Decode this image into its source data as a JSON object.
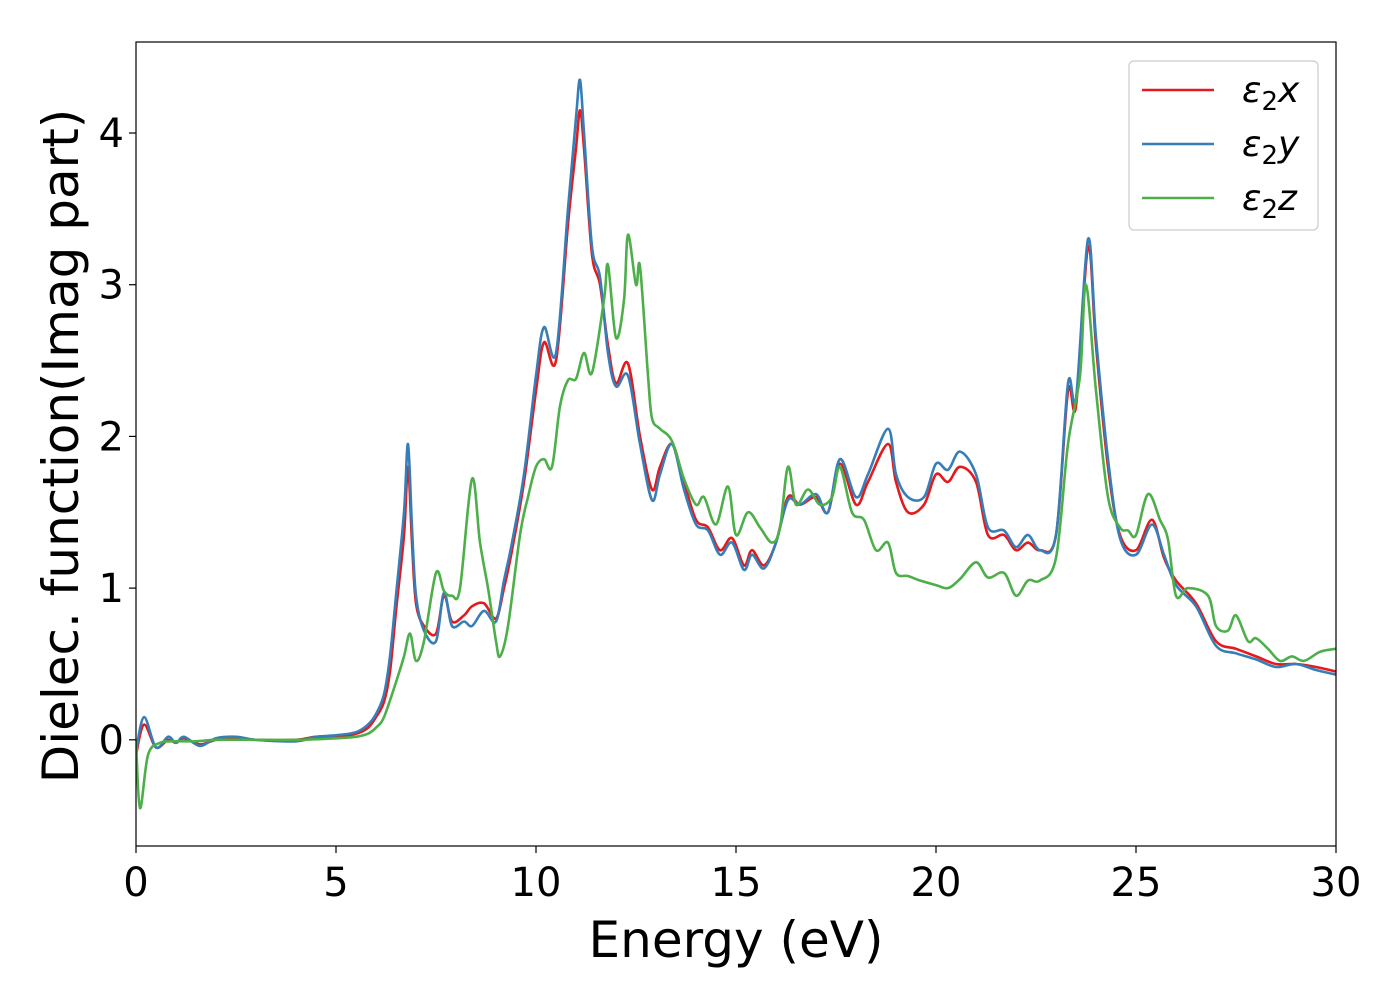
{
  "chart_data": {
    "type": "line",
    "title": "",
    "xlabel": "Energy (eV)",
    "ylabel": "Dielec. function(Imag part)",
    "xlim": [
      0,
      30
    ],
    "ylim": [
      -0.7,
      4.6
    ],
    "xticks": [
      0,
      5,
      10,
      15,
      20,
      25,
      30
    ],
    "xtick_labels": [
      "0",
      "5",
      "10",
      "15",
      "20",
      "25",
      "30"
    ],
    "yticks": [
      0,
      1,
      2,
      3,
      4
    ],
    "ytick_labels": [
      "0",
      "1",
      "2",
      "3",
      "4"
    ],
    "grid": false,
    "legend_position": "top-right",
    "series": [
      {
        "name": "ε2x",
        "legend_base": "ε",
        "legend_sub": "2",
        "legend_suffix": "x",
        "color": "#e41a1c",
        "points": [
          [
            0,
            -0.1
          ],
          [
            0.2,
            0.1
          ],
          [
            0.5,
            -0.05
          ],
          [
            0.8,
            0.0
          ],
          [
            1.0,
            -0.02
          ],
          [
            1.2,
            0.01
          ],
          [
            1.6,
            -0.03
          ],
          [
            2.0,
            0.0
          ],
          [
            2.5,
            0.01
          ],
          [
            3.0,
            0.0
          ],
          [
            4.0,
            0.0
          ],
          [
            4.5,
            0.02
          ],
          [
            5.0,
            0.02
          ],
          [
            5.5,
            0.04
          ],
          [
            5.8,
            0.08
          ],
          [
            6.0,
            0.15
          ],
          [
            6.2,
            0.25
          ],
          [
            6.35,
            0.45
          ],
          [
            6.5,
            0.85
          ],
          [
            6.7,
            1.35
          ],
          [
            6.8,
            1.8
          ],
          [
            6.9,
            1.3
          ],
          [
            7.0,
            0.9
          ],
          [
            7.2,
            0.75
          ],
          [
            7.5,
            0.7
          ],
          [
            7.7,
            0.95
          ],
          [
            7.9,
            0.78
          ],
          [
            8.2,
            0.82
          ],
          [
            8.4,
            0.88
          ],
          [
            8.7,
            0.9
          ],
          [
            9.0,
            0.8
          ],
          [
            9.2,
            1.0
          ],
          [
            9.4,
            1.25
          ],
          [
            9.7,
            1.7
          ],
          [
            10.0,
            2.3
          ],
          [
            10.2,
            2.62
          ],
          [
            10.5,
            2.5
          ],
          [
            10.8,
            3.4
          ],
          [
            11.0,
            3.9
          ],
          [
            11.1,
            4.15
          ],
          [
            11.2,
            3.9
          ],
          [
            11.4,
            3.2
          ],
          [
            11.6,
            3.0
          ],
          [
            11.8,
            2.6
          ],
          [
            12.0,
            2.35
          ],
          [
            12.3,
            2.48
          ],
          [
            12.6,
            2.0
          ],
          [
            12.9,
            1.65
          ],
          [
            13.1,
            1.8
          ],
          [
            13.4,
            1.95
          ],
          [
            13.7,
            1.7
          ],
          [
            14.0,
            1.45
          ],
          [
            14.3,
            1.4
          ],
          [
            14.6,
            1.25
          ],
          [
            14.9,
            1.33
          ],
          [
            15.2,
            1.15
          ],
          [
            15.4,
            1.25
          ],
          [
            15.7,
            1.15
          ],
          [
            16.0,
            1.3
          ],
          [
            16.3,
            1.6
          ],
          [
            16.6,
            1.55
          ],
          [
            17.0,
            1.6
          ],
          [
            17.3,
            1.5
          ],
          [
            17.6,
            1.82
          ],
          [
            18.0,
            1.55
          ],
          [
            18.3,
            1.7
          ],
          [
            18.8,
            1.95
          ],
          [
            19.0,
            1.7
          ],
          [
            19.3,
            1.5
          ],
          [
            19.7,
            1.55
          ],
          [
            20.0,
            1.75
          ],
          [
            20.3,
            1.7
          ],
          [
            20.6,
            1.8
          ],
          [
            21.0,
            1.7
          ],
          [
            21.3,
            1.35
          ],
          [
            21.7,
            1.35
          ],
          [
            22.0,
            1.25
          ],
          [
            22.3,
            1.3
          ],
          [
            22.6,
            1.25
          ],
          [
            23.0,
            1.35
          ],
          [
            23.3,
            2.3
          ],
          [
            23.5,
            2.2
          ],
          [
            23.8,
            3.25
          ],
          [
            24.0,
            2.6
          ],
          [
            24.3,
            1.8
          ],
          [
            24.6,
            1.35
          ],
          [
            25.0,
            1.25
          ],
          [
            25.4,
            1.45
          ],
          [
            25.7,
            1.2
          ],
          [
            26.0,
            1.05
          ],
          [
            26.5,
            0.9
          ],
          [
            27.0,
            0.65
          ],
          [
            27.5,
            0.6
          ],
          [
            28.0,
            0.55
          ],
          [
            28.5,
            0.5
          ],
          [
            29.0,
            0.5
          ],
          [
            29.5,
            0.48
          ],
          [
            30.0,
            0.45
          ]
        ]
      },
      {
        "name": "ε2y",
        "legend_base": "ε",
        "legend_sub": "2",
        "legend_suffix": "y",
        "color": "#377eb8",
        "points": [
          [
            0,
            -0.08
          ],
          [
            0.2,
            0.15
          ],
          [
            0.5,
            -0.05
          ],
          [
            0.8,
            0.02
          ],
          [
            1.0,
            -0.02
          ],
          [
            1.2,
            0.02
          ],
          [
            1.6,
            -0.04
          ],
          [
            2.0,
            0.01
          ],
          [
            2.5,
            0.02
          ],
          [
            3.0,
            0.0
          ],
          [
            4.0,
            -0.01
          ],
          [
            4.5,
            0.02
          ],
          [
            5.0,
            0.03
          ],
          [
            5.5,
            0.05
          ],
          [
            5.8,
            0.1
          ],
          [
            6.0,
            0.17
          ],
          [
            6.2,
            0.3
          ],
          [
            6.35,
            0.55
          ],
          [
            6.5,
            0.95
          ],
          [
            6.7,
            1.5
          ],
          [
            6.8,
            1.95
          ],
          [
            6.9,
            1.4
          ],
          [
            7.0,
            0.95
          ],
          [
            7.2,
            0.72
          ],
          [
            7.5,
            0.65
          ],
          [
            7.7,
            0.97
          ],
          [
            7.9,
            0.75
          ],
          [
            8.2,
            0.78
          ],
          [
            8.4,
            0.75
          ],
          [
            8.7,
            0.85
          ],
          [
            9.0,
            0.78
          ],
          [
            9.2,
            1.05
          ],
          [
            9.4,
            1.3
          ],
          [
            9.7,
            1.75
          ],
          [
            10.0,
            2.4
          ],
          [
            10.2,
            2.72
          ],
          [
            10.5,
            2.55
          ],
          [
            10.8,
            3.5
          ],
          [
            11.0,
            4.1
          ],
          [
            11.1,
            4.35
          ],
          [
            11.2,
            4.0
          ],
          [
            11.4,
            3.25
          ],
          [
            11.6,
            3.05
          ],
          [
            11.8,
            2.55
          ],
          [
            12.0,
            2.33
          ],
          [
            12.3,
            2.4
          ],
          [
            12.6,
            1.95
          ],
          [
            12.9,
            1.58
          ],
          [
            13.1,
            1.75
          ],
          [
            13.4,
            1.95
          ],
          [
            13.7,
            1.65
          ],
          [
            14.0,
            1.42
          ],
          [
            14.3,
            1.38
          ],
          [
            14.6,
            1.22
          ],
          [
            14.9,
            1.3
          ],
          [
            15.2,
            1.12
          ],
          [
            15.4,
            1.22
          ],
          [
            15.7,
            1.13
          ],
          [
            16.0,
            1.3
          ],
          [
            16.3,
            1.58
          ],
          [
            16.6,
            1.55
          ],
          [
            17.0,
            1.62
          ],
          [
            17.3,
            1.5
          ],
          [
            17.6,
            1.85
          ],
          [
            18.0,
            1.6
          ],
          [
            18.3,
            1.75
          ],
          [
            18.8,
            2.05
          ],
          [
            19.0,
            1.75
          ],
          [
            19.3,
            1.6
          ],
          [
            19.7,
            1.6
          ],
          [
            20.0,
            1.82
          ],
          [
            20.3,
            1.78
          ],
          [
            20.6,
            1.9
          ],
          [
            21.0,
            1.75
          ],
          [
            21.3,
            1.4
          ],
          [
            21.7,
            1.38
          ],
          [
            22.0,
            1.27
          ],
          [
            22.3,
            1.35
          ],
          [
            22.6,
            1.25
          ],
          [
            23.0,
            1.35
          ],
          [
            23.3,
            2.35
          ],
          [
            23.5,
            2.25
          ],
          [
            23.8,
            3.3
          ],
          [
            24.0,
            2.65
          ],
          [
            24.3,
            1.85
          ],
          [
            24.6,
            1.33
          ],
          [
            25.0,
            1.22
          ],
          [
            25.4,
            1.42
          ],
          [
            25.7,
            1.22
          ],
          [
            26.0,
            1.02
          ],
          [
            26.5,
            0.88
          ],
          [
            27.0,
            0.62
          ],
          [
            27.5,
            0.57
          ],
          [
            28.0,
            0.53
          ],
          [
            28.5,
            0.48
          ],
          [
            29.0,
            0.5
          ],
          [
            29.5,
            0.46
          ],
          [
            30.0,
            0.43
          ]
        ]
      },
      {
        "name": "ε2z",
        "legend_base": "ε",
        "legend_sub": "2",
        "legend_suffix": "z",
        "color": "#4daf4a",
        "points": [
          [
            0,
            0.0
          ],
          [
            0.1,
            -0.45
          ],
          [
            0.3,
            -0.1
          ],
          [
            0.6,
            -0.02
          ],
          [
            1.0,
            -0.01
          ],
          [
            1.5,
            -0.01
          ],
          [
            2.0,
            0.0
          ],
          [
            3.0,
            0.0
          ],
          [
            4.0,
            0.0
          ],
          [
            5.0,
            0.01
          ],
          [
            5.5,
            0.02
          ],
          [
            5.8,
            0.04
          ],
          [
            6.0,
            0.08
          ],
          [
            6.2,
            0.15
          ],
          [
            6.5,
            0.38
          ],
          [
            6.7,
            0.55
          ],
          [
            6.85,
            0.7
          ],
          [
            7.0,
            0.52
          ],
          [
            7.2,
            0.65
          ],
          [
            7.5,
            1.1
          ],
          [
            7.7,
            0.98
          ],
          [
            7.9,
            0.95
          ],
          [
            8.1,
            1.0
          ],
          [
            8.4,
            1.72
          ],
          [
            8.6,
            1.3
          ],
          [
            8.8,
            1.0
          ],
          [
            9.0,
            0.65
          ],
          [
            9.1,
            0.55
          ],
          [
            9.3,
            0.75
          ],
          [
            9.6,
            1.35
          ],
          [
            9.8,
            1.6
          ],
          [
            10.0,
            1.8
          ],
          [
            10.2,
            1.85
          ],
          [
            10.4,
            1.8
          ],
          [
            10.6,
            2.2
          ],
          [
            10.8,
            2.37
          ],
          [
            11.0,
            2.38
          ],
          [
            11.2,
            2.55
          ],
          [
            11.4,
            2.42
          ],
          [
            11.7,
            2.9
          ],
          [
            11.8,
            3.13
          ],
          [
            12.0,
            2.65
          ],
          [
            12.2,
            2.9
          ],
          [
            12.3,
            3.33
          ],
          [
            12.5,
            3.0
          ],
          [
            12.6,
            3.12
          ],
          [
            12.8,
            2.4
          ],
          [
            12.9,
            2.12
          ],
          [
            13.1,
            2.05
          ],
          [
            13.4,
            1.97
          ],
          [
            13.7,
            1.72
          ],
          [
            14.0,
            1.55
          ],
          [
            14.2,
            1.6
          ],
          [
            14.5,
            1.42
          ],
          [
            14.8,
            1.67
          ],
          [
            15.0,
            1.35
          ],
          [
            15.3,
            1.5
          ],
          [
            15.6,
            1.4
          ],
          [
            15.9,
            1.3
          ],
          [
            16.1,
            1.4
          ],
          [
            16.3,
            1.8
          ],
          [
            16.5,
            1.55
          ],
          [
            16.8,
            1.65
          ],
          [
            17.1,
            1.55
          ],
          [
            17.4,
            1.6
          ],
          [
            17.6,
            1.8
          ],
          [
            17.9,
            1.5
          ],
          [
            18.2,
            1.45
          ],
          [
            18.5,
            1.25
          ],
          [
            18.8,
            1.3
          ],
          [
            19.0,
            1.1
          ],
          [
            19.3,
            1.08
          ],
          [
            19.6,
            1.05
          ],
          [
            20.0,
            1.02
          ],
          [
            20.3,
            1.0
          ],
          [
            20.6,
            1.06
          ],
          [
            21.0,
            1.17
          ],
          [
            21.3,
            1.07
          ],
          [
            21.7,
            1.1
          ],
          [
            22.0,
            0.95
          ],
          [
            22.3,
            1.05
          ],
          [
            22.6,
            1.05
          ],
          [
            23.0,
            1.2
          ],
          [
            23.3,
            1.95
          ],
          [
            23.6,
            2.4
          ],
          [
            23.75,
            3.0
          ],
          [
            24.0,
            2.3
          ],
          [
            24.3,
            1.6
          ],
          [
            24.6,
            1.4
          ],
          [
            24.8,
            1.38
          ],
          [
            25.0,
            1.35
          ],
          [
            25.3,
            1.62
          ],
          [
            25.6,
            1.45
          ],
          [
            25.8,
            1.32
          ],
          [
            26.0,
            0.95
          ],
          [
            26.3,
            1.0
          ],
          [
            26.8,
            0.95
          ],
          [
            27.0,
            0.75
          ],
          [
            27.3,
            0.72
          ],
          [
            27.5,
            0.82
          ],
          [
            27.8,
            0.65
          ],
          [
            28.0,
            0.67
          ],
          [
            28.3,
            0.6
          ],
          [
            28.6,
            0.52
          ],
          [
            28.9,
            0.55
          ],
          [
            29.2,
            0.52
          ],
          [
            29.6,
            0.58
          ],
          [
            30.0,
            0.6
          ]
        ]
      }
    ]
  }
}
